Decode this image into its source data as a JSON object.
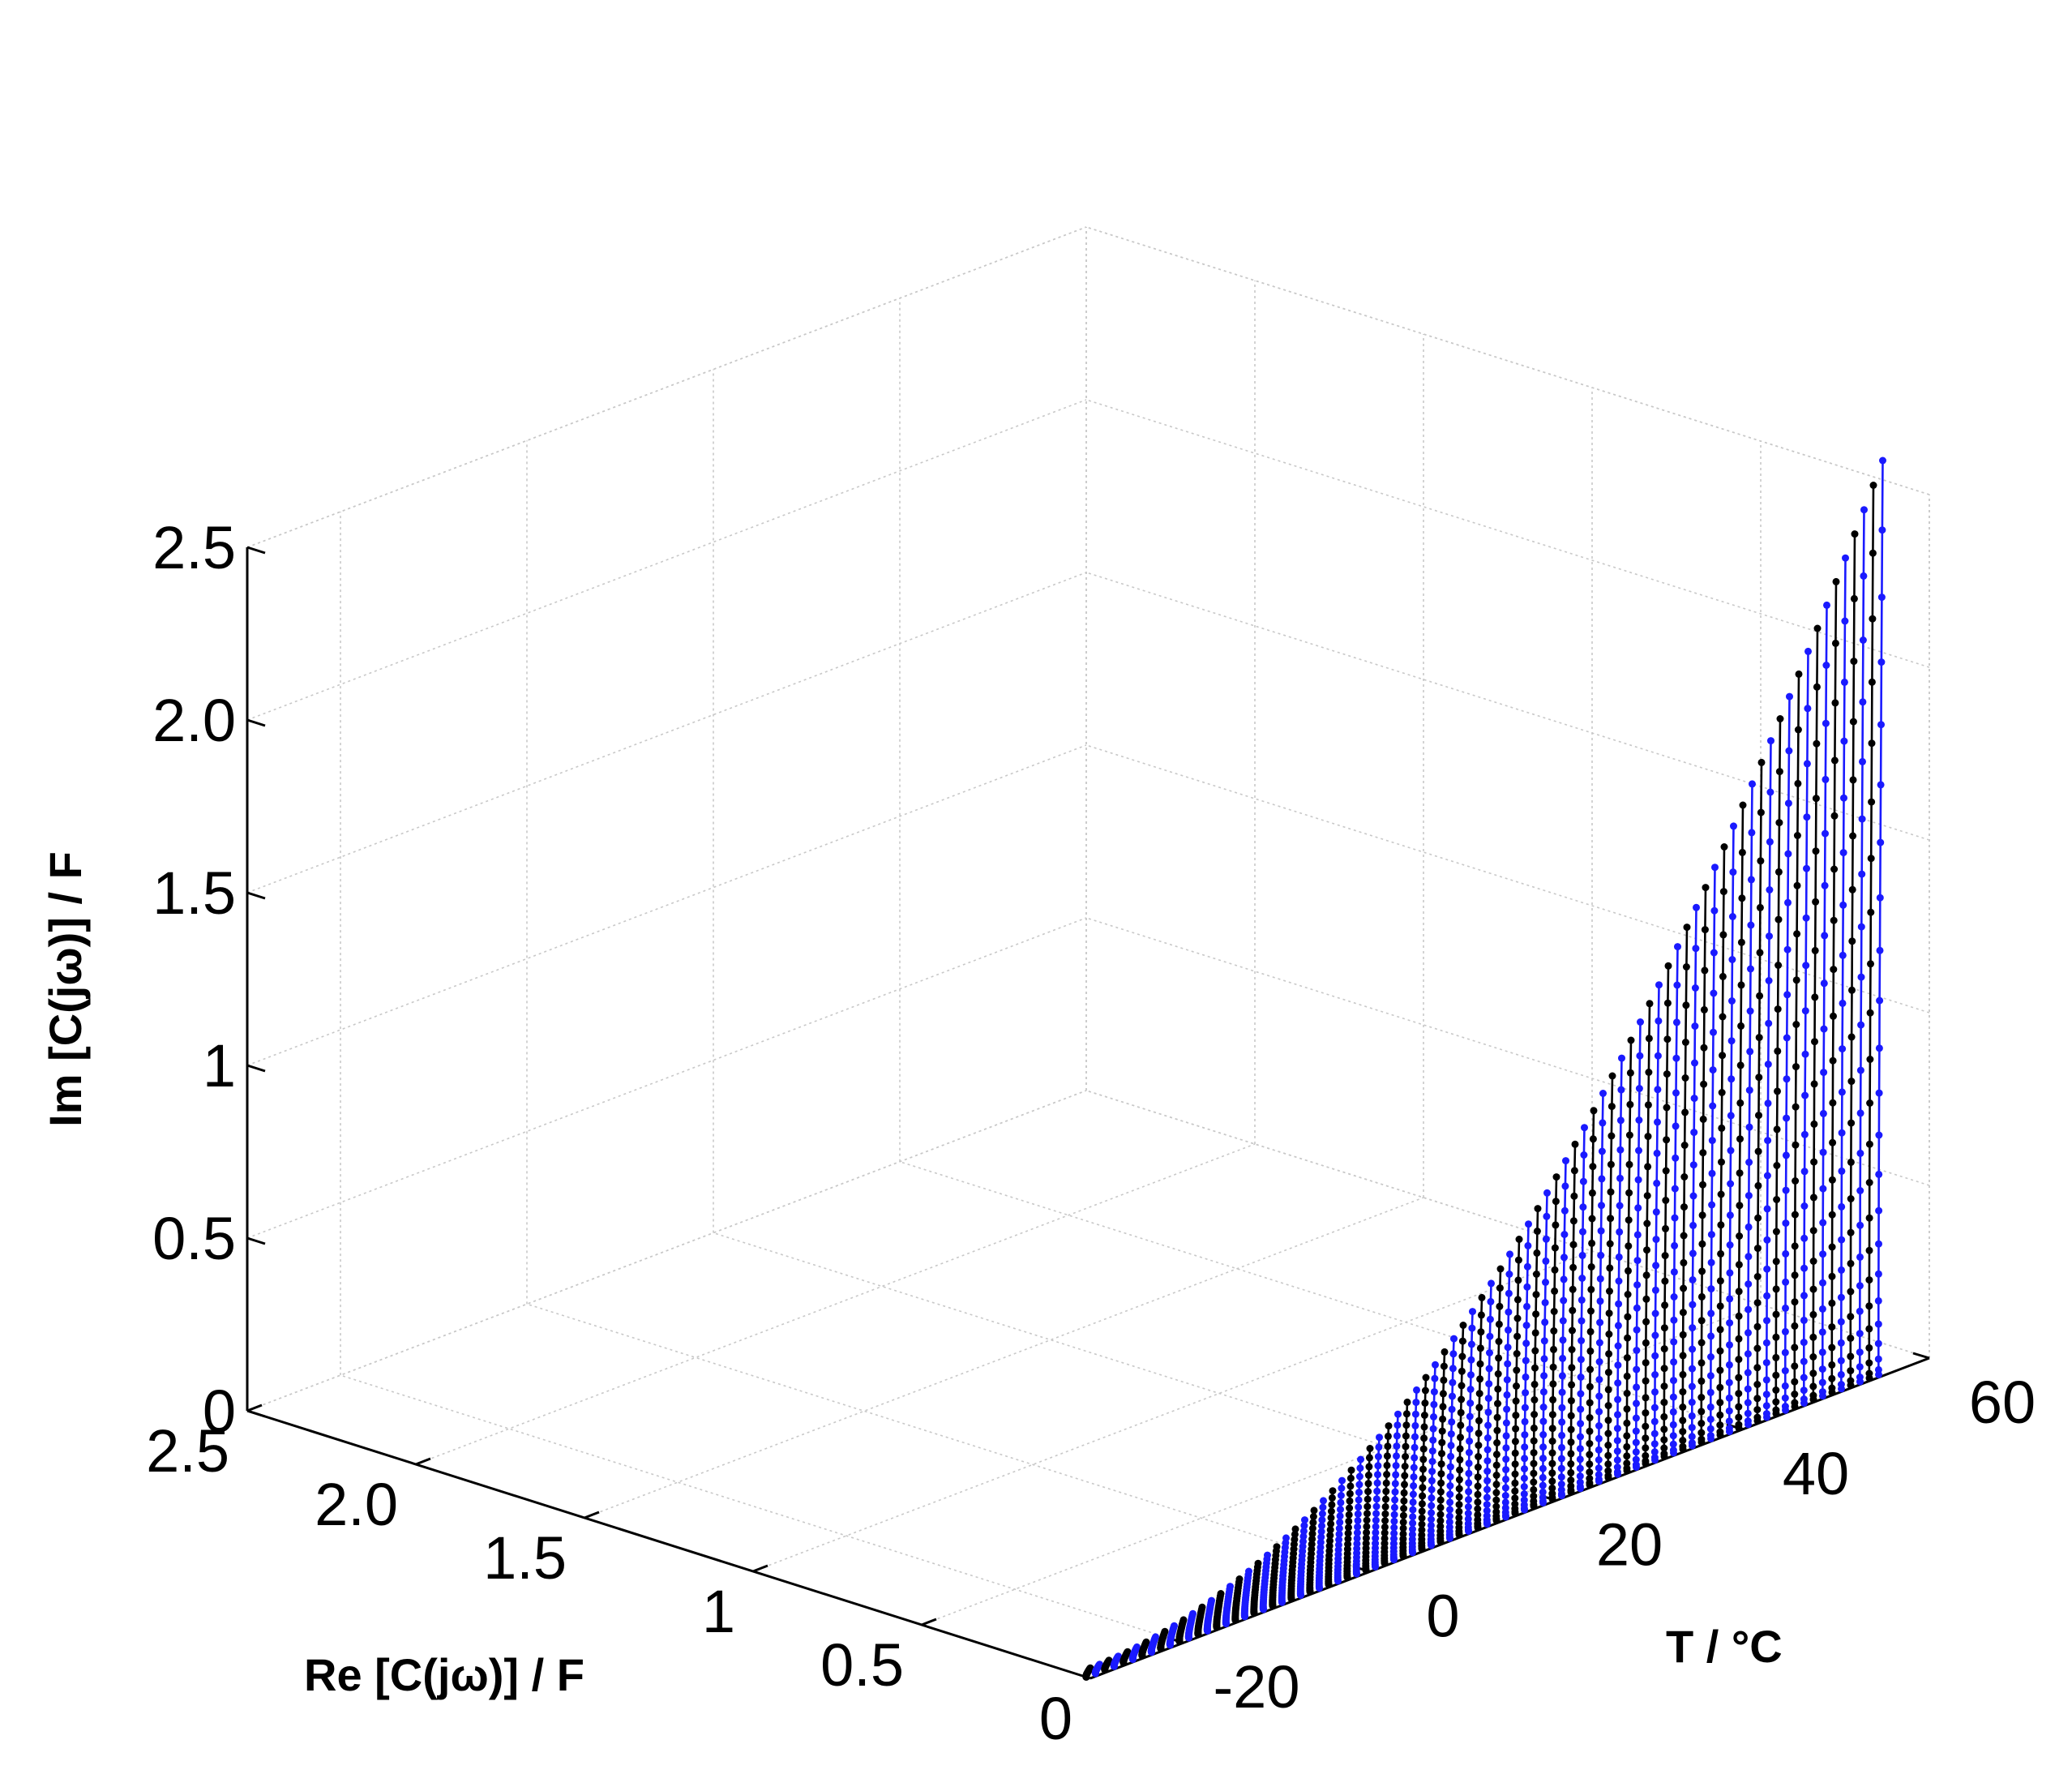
{
  "chart_data": {
    "type": "line",
    "plot_style": "3d-waterfall",
    "axes": {
      "x": {
        "label": "Re [C(jω)] / F",
        "min": 0,
        "max": 2.5,
        "ticks": [
          0,
          0.5,
          1,
          1.5,
          2.0,
          2.5
        ],
        "tick_labels": [
          "0",
          "0.5",
          "1",
          "1.5",
          "2.0",
          "2.5"
        ]
      },
      "y": {
        "label": "T / °C",
        "min": -30,
        "max": 60,
        "ticks": [
          -20,
          0,
          20,
          40,
          60
        ],
        "tick_labels": [
          "-20",
          "0",
          "20",
          "40",
          "60"
        ]
      },
      "z": {
        "label": "Im [C(jω)] / F",
        "min": 0,
        "max": 2.5,
        "ticks": [
          0,
          0.5,
          1,
          1.5,
          2.0,
          2.5
        ],
        "tick_labels": [
          "0",
          "0.5",
          "1",
          "1.5",
          "2.0",
          "2.5"
        ]
      }
    },
    "grid": true,
    "series_colors": [
      "#000000",
      "#1a1aff"
    ],
    "temperature_range": [
      -30,
      55
    ],
    "curve_count": 86,
    "re_range_per_curve": [
      0,
      0.03
    ],
    "im_at_max_T": 2.65,
    "im_shape": "quadratic increase with temperature",
    "notes": "Each temperature step is a near-vertical curve of points from Im≈0 to Im(T); colors alternate black and blue."
  }
}
